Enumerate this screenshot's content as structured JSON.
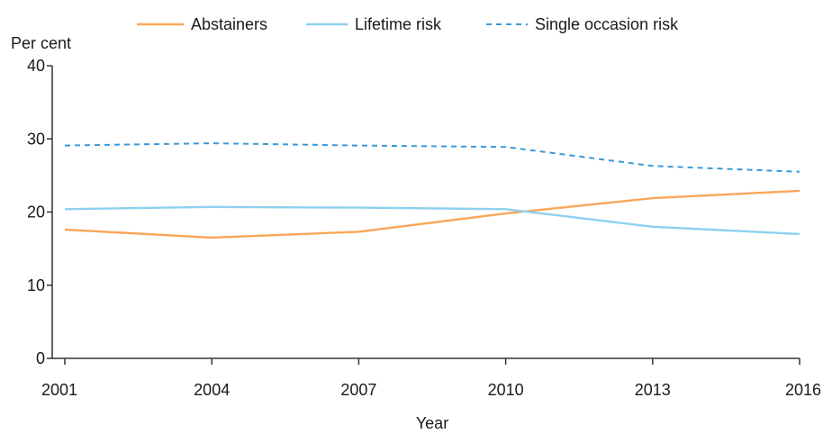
{
  "chart_data": {
    "type": "line",
    "title": "",
    "xlabel": "Year",
    "ylabel": "Per cent",
    "x": [
      2001,
      2004,
      2007,
      2010,
      2013,
      2016
    ],
    "x_tick_labels": [
      "2001",
      "2004",
      "2007",
      "2010",
      "2013",
      "2016"
    ],
    "y_ticks": [
      0,
      10,
      20,
      30,
      40
    ],
    "y_tick_labels": [
      "0",
      "10",
      "20",
      "30",
      "40"
    ],
    "ylim": [
      0,
      40
    ],
    "xlim": [
      2001,
      2016
    ],
    "grid": false,
    "legend_position": "top-center",
    "series": [
      {
        "name": "Abstainers",
        "values": [
          17.6,
          16.5,
          17.3,
          19.8,
          21.9,
          22.9
        ],
        "color": "#f9a65a",
        "dash": "solid"
      },
      {
        "name": "Lifetime risk",
        "values": [
          20.4,
          20.7,
          20.6,
          20.4,
          18.0,
          17.0
        ],
        "color": "#8fd0f0",
        "dash": "solid"
      },
      {
        "name": "Single occasion risk",
        "values": [
          29.1,
          29.4,
          29.1,
          28.9,
          26.3,
          25.5
        ],
        "color": "#3a9ad9",
        "dash": "dashed"
      }
    ]
  }
}
